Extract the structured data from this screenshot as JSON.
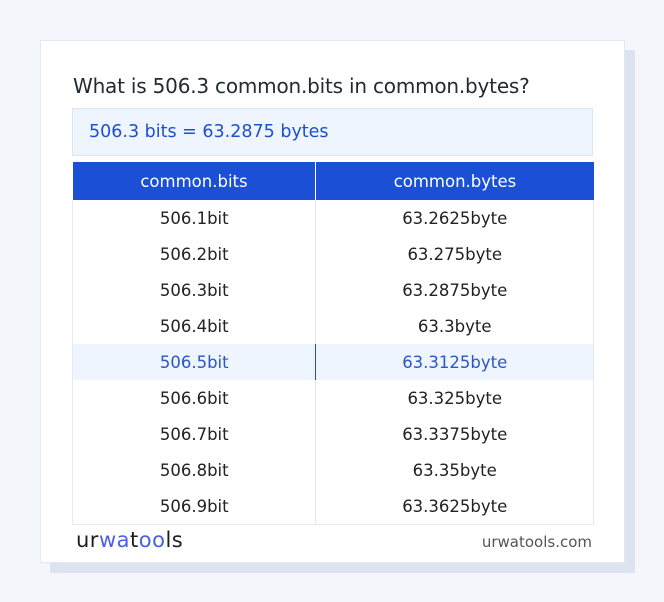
{
  "title": "What is 506.3 common.bits in common.bytes?",
  "result": "506.3 bits = 63.2875 bytes",
  "table": {
    "headers": [
      "common.bits",
      "common.bytes"
    ],
    "highlight_index": 4,
    "rows": [
      [
        "506.1bit",
        "63.2625byte"
      ],
      [
        "506.2bit",
        "63.275byte"
      ],
      [
        "506.3bit",
        "63.2875byte"
      ],
      [
        "506.4bit",
        "63.3byte"
      ],
      [
        "506.5bit",
        "63.3125byte"
      ],
      [
        "506.6bit",
        "63.325byte"
      ],
      [
        "506.7bit",
        "63.3375byte"
      ],
      [
        "506.8bit",
        "63.35byte"
      ],
      [
        "506.9bit",
        "63.3625byte"
      ]
    ]
  },
  "footer": {
    "logo": "urwatools",
    "logo_parts": [
      "ur",
      "wa",
      "t",
      "oo",
      "ls"
    ],
    "site": "urwatools.com"
  },
  "colors": {
    "accent": "#1b4fd6",
    "highlight_bg": "#eef5fe"
  }
}
